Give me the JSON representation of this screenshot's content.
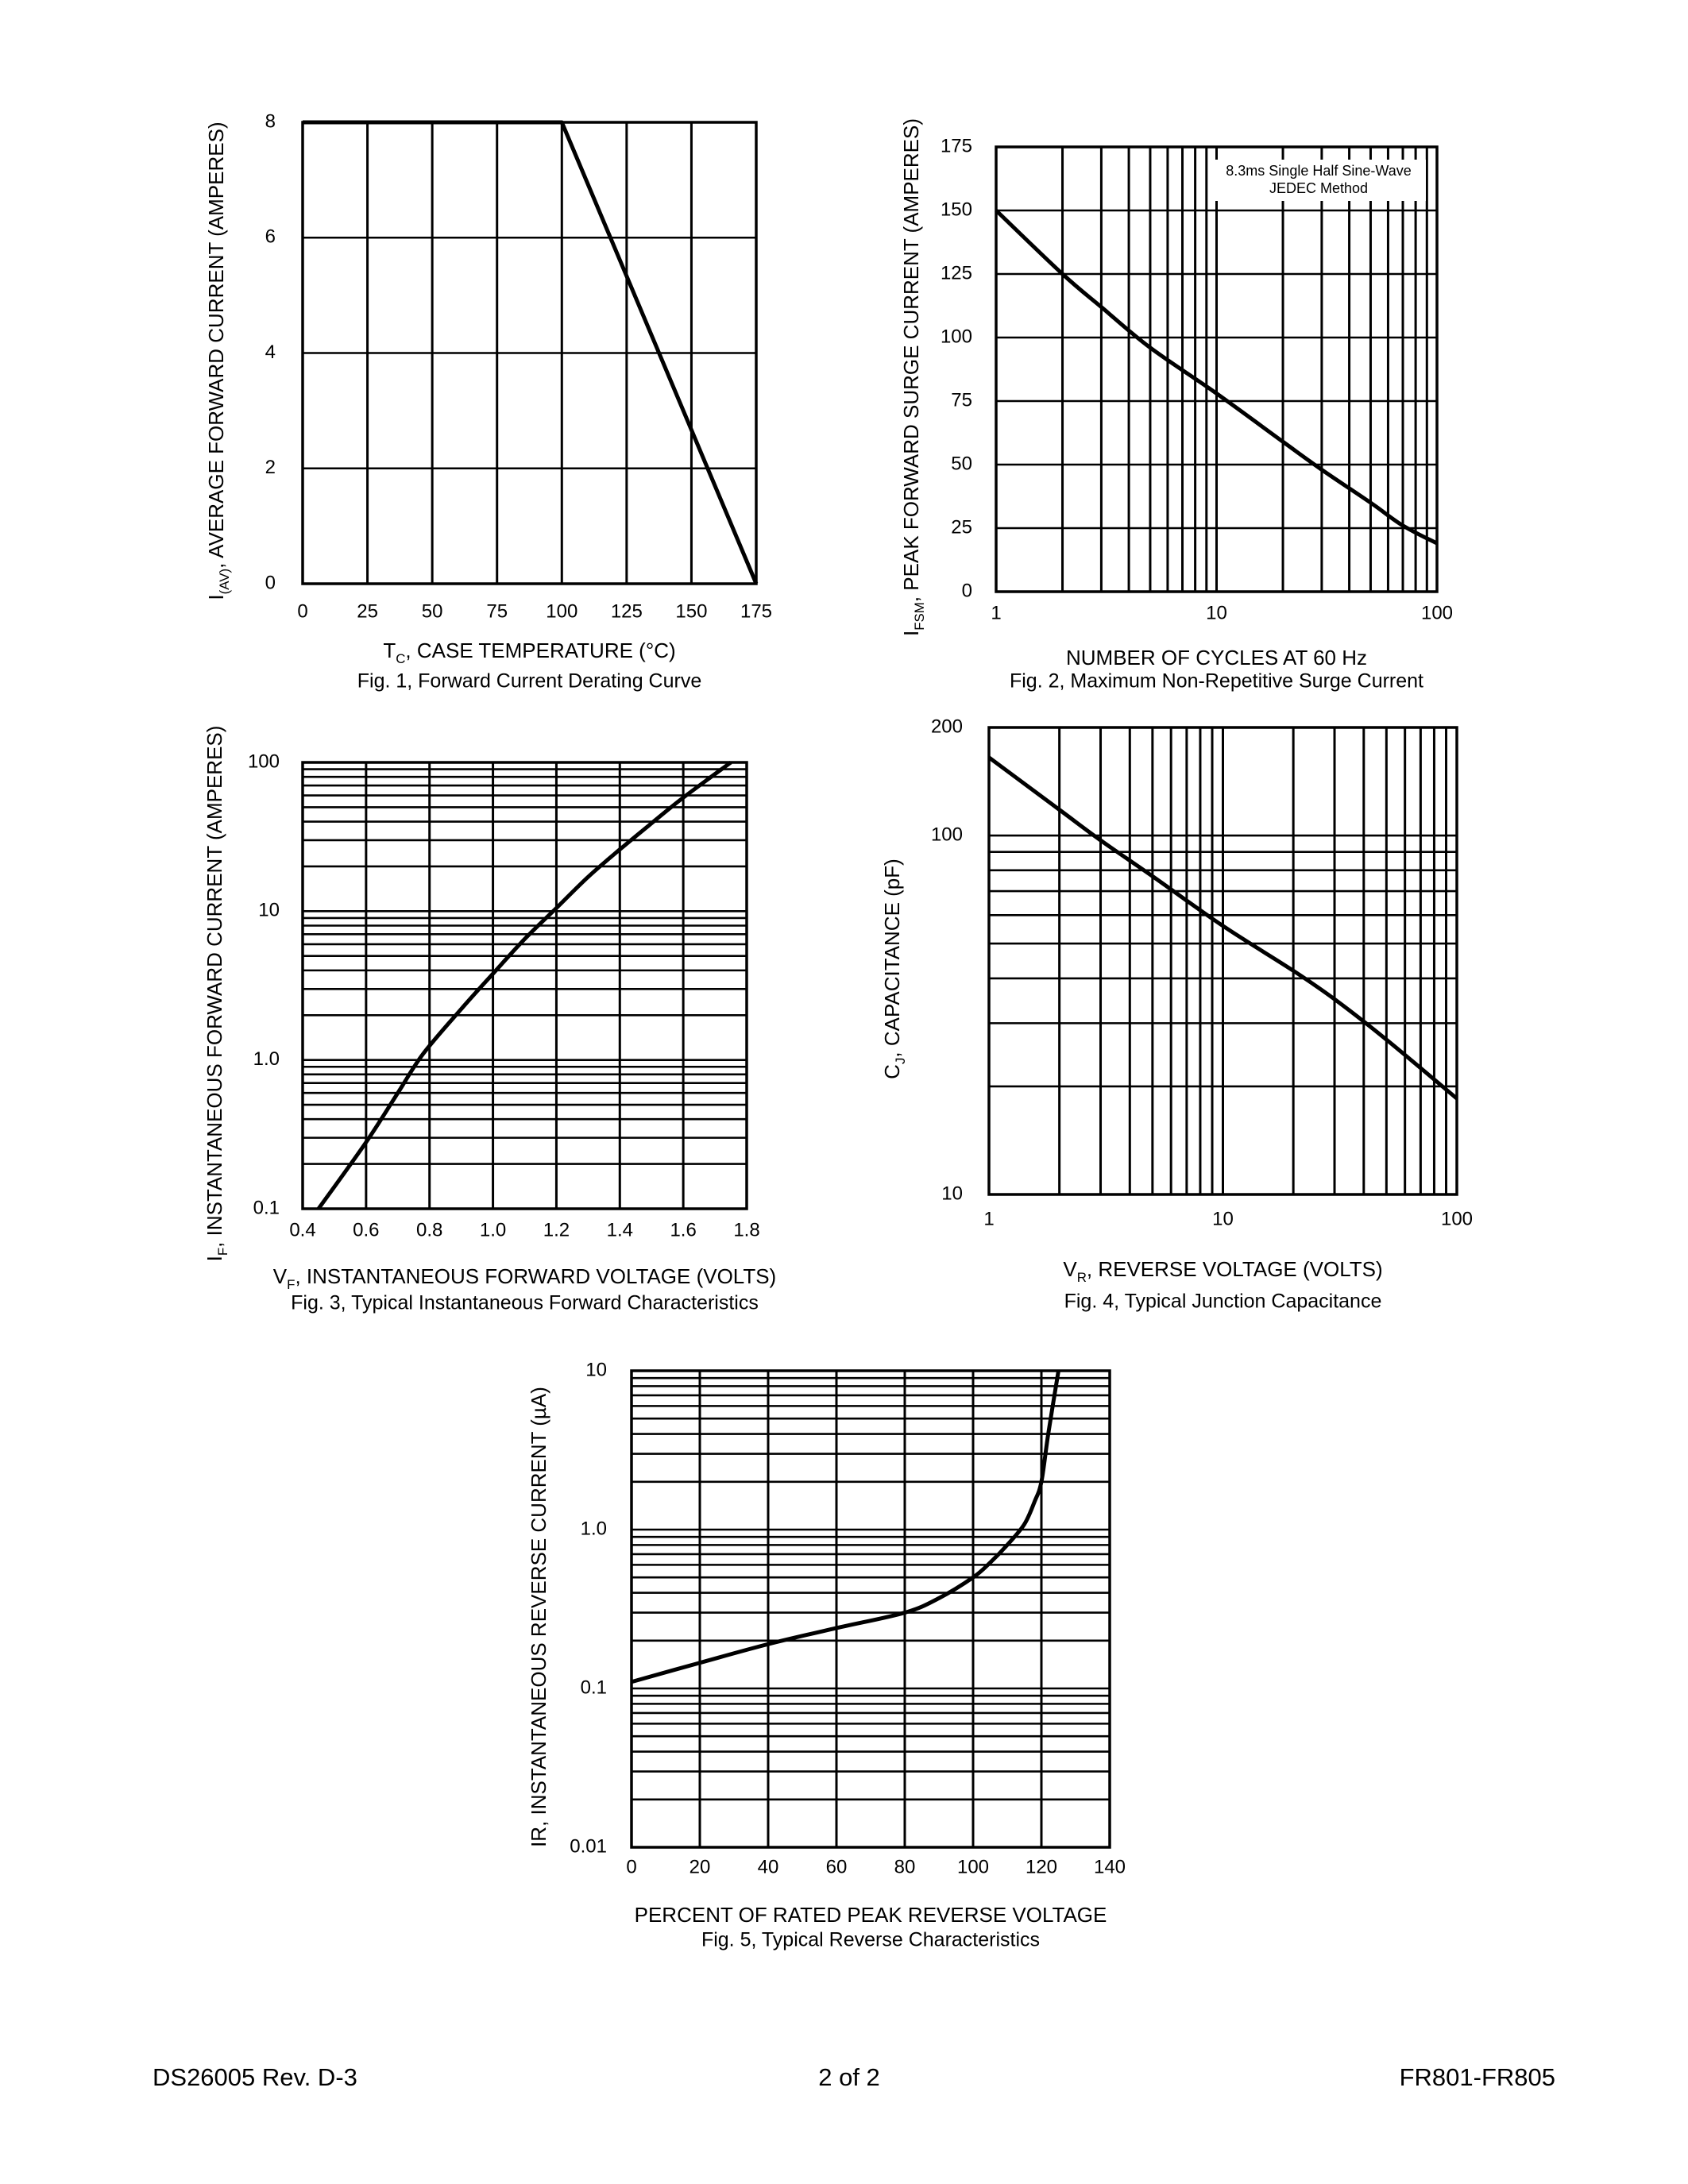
{
  "footer": {
    "left": "DS26005 Rev. D-3",
    "center": "2 of 2",
    "right": "FR801-FR805"
  },
  "chart_data": [
    {
      "id": "fig1",
      "type": "line",
      "caption": "Fig. 1,  Forward Current Derating Curve",
      "xlabel": {
        "main": "T",
        "sub": "C",
        "rest": ", CASE TEMPERATURE (°C)"
      },
      "ylabel": {
        "main": "I",
        "sub": "(AV)",
        "rest": ", AVERAGE FORWARD CURRENT (AMPERES)"
      },
      "xscale": "linear",
      "yscale": "linear",
      "xlim": [
        0,
        175
      ],
      "ylim": [
        0,
        8
      ],
      "xticks": [
        0,
        25,
        50,
        75,
        100,
        125,
        150,
        175
      ],
      "xtick_labels": [
        "0",
        "25",
        "50",
        "75",
        "100",
        "125",
        "150",
        "175"
      ],
      "yticks": [
        0,
        2,
        4,
        6,
        8
      ],
      "ytick_labels": [
        "0",
        "2",
        "4",
        "6",
        "8"
      ],
      "grid": true,
      "series": [
        {
          "x": [
            0,
            100,
            175
          ],
          "y": [
            8,
            8,
            0
          ]
        }
      ]
    },
    {
      "id": "fig2",
      "type": "line",
      "caption": "Fig. 2,  Maximum Non-Repetitive Surge Current",
      "xlabel": {
        "main": "NUMBER OF CYCLES AT 60 Hz",
        "sub": "",
        "rest": ""
      },
      "ylabel": {
        "main": "I",
        "sub": "FSM",
        "rest": ", PEAK FORWARD SURGE CURRENT (AMPERES)"
      },
      "xscale": "log",
      "yscale": "linear",
      "xlim": [
        1,
        100
      ],
      "ylim": [
        0,
        175
      ],
      "xticks": [
        1,
        10,
        100
      ],
      "xtick_labels": [
        "1",
        "10",
        "100"
      ],
      "yticks": [
        0,
        25,
        50,
        75,
        100,
        125,
        150,
        175
      ],
      "ytick_labels": [
        "0",
        "25",
        "50",
        "75",
        "100",
        "125",
        "150",
        "175"
      ],
      "grid": true,
      "annotation": [
        "8.3ms Single Half Sine-Wave",
        "JEDEC Method"
      ],
      "series": [
        {
          "x": [
            1,
            2,
            3,
            5,
            10,
            20,
            30,
            50,
            70,
            100
          ],
          "y": [
            150,
            125,
            112,
            96,
            78,
            59,
            48,
            35,
            26,
            19
          ]
        }
      ]
    },
    {
      "id": "fig3",
      "type": "line",
      "caption": "Fig. 3,  Typical Instantaneous Forward Characteristics",
      "xlabel": {
        "main": "V",
        "sub": "F",
        "rest": ", INSTANTANEOUS FORWARD VOLTAGE (VOLTS)"
      },
      "ylabel": {
        "main": "I",
        "sub": "F",
        "rest": ", INSTANTANEOUS FORWARD CURRENT (AMPERES)"
      },
      "xscale": "linear",
      "yscale": "log",
      "xlim": [
        0.4,
        1.8
      ],
      "ylim": [
        0.1,
        100
      ],
      "xticks": [
        0.4,
        0.6,
        0.8,
        1.0,
        1.2,
        1.4,
        1.6,
        1.8
      ],
      "xtick_labels": [
        "0.4",
        "0.6",
        "0.8",
        "1.0",
        "1.2",
        "1.4",
        "1.6",
        "1.8"
      ],
      "yticks": [
        0.1,
        1,
        10,
        100
      ],
      "ytick_labels": [
        "0.1",
        "1.0",
        "10",
        "100"
      ],
      "grid": true,
      "series": [
        {
          "x": [
            0.45,
            0.6,
            0.7,
            0.78,
            0.9,
            1.0,
            1.1,
            1.2,
            1.3,
            1.4,
            1.5,
            1.6,
            1.75
          ],
          "y": [
            0.1,
            0.28,
            0.6,
            1.1,
            2.2,
            3.8,
            6.5,
            10.5,
            17,
            26,
            39,
            58,
            100
          ]
        }
      ]
    },
    {
      "id": "fig4",
      "type": "line",
      "caption": "Fig. 4,  Typical Junction Capacitance",
      "xlabel": {
        "main": "V",
        "sub": "R",
        "rest": ", REVERSE VOLTAGE (VOLTS)"
      },
      "ylabel": {
        "main": "C",
        "sub": "J",
        "rest": ", CAPACITANCE (pF)"
      },
      "xscale": "log",
      "yscale": "log",
      "xlim": [
        1,
        100
      ],
      "ylim": [
        10,
        200
      ],
      "xticks": [
        1,
        10,
        100
      ],
      "xtick_labels": [
        "1",
        "10",
        "100"
      ],
      "yticks": [
        10,
        100,
        200
      ],
      "ytick_labels": [
        "10",
        "100",
        "200"
      ],
      "grid": true,
      "series": [
        {
          "x": [
            1,
            2,
            3,
            5,
            10,
            20,
            30,
            50,
            100
          ],
          "y": [
            165,
            118,
            97,
            77,
            56,
            42,
            35,
            27,
            18.5
          ]
        }
      ]
    },
    {
      "id": "fig5",
      "type": "line",
      "caption": "Fig. 5,  Typical Reverse Characteristics",
      "xlabel": {
        "main": "PERCENT OF RATED PEAK REVERSE VOLTAGE",
        "sub": "",
        "rest": ""
      },
      "ylabel": {
        "main": "IR, INSTANTANEOUS REVERSE CURRENT (µA)",
        "sub": "",
        "rest": ""
      },
      "xscale": "linear",
      "yscale": "log",
      "xlim": [
        0,
        140
      ],
      "ylim": [
        0.01,
        10
      ],
      "xticks": [
        0,
        20,
        40,
        60,
        80,
        100,
        120,
        140
      ],
      "xtick_labels": [
        "0",
        "20",
        "40",
        "60",
        "80",
        "100",
        "120",
        "140"
      ],
      "yticks": [
        0.01,
        0.1,
        1,
        10
      ],
      "ytick_labels": [
        "0.01",
        "0.1",
        "1.0",
        "10"
      ],
      "grid": true,
      "series": [
        {
          "x": [
            0,
            20,
            40,
            60,
            80,
            90,
            100,
            105,
            110,
            115,
            118,
            120,
            122,
            125
          ],
          "y": [
            0.11,
            0.145,
            0.19,
            0.24,
            0.3,
            0.37,
            0.5,
            0.62,
            0.8,
            1.08,
            1.5,
            2.0,
            4.0,
            10
          ]
        }
      ]
    }
  ]
}
